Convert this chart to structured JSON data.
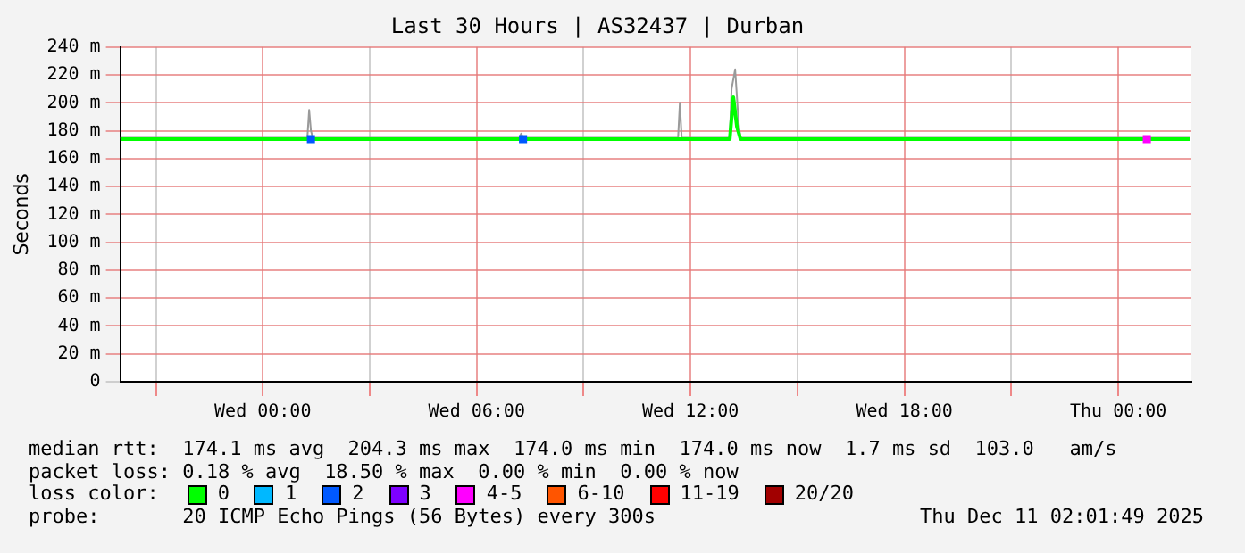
{
  "chart_data": {
    "type": "line",
    "title": "Last 30 Hours | AS32437 | Durban",
    "ylabel": "Seconds",
    "legend_title": "loss color:",
    "legend": "bottom",
    "grid": true,
    "line_style": "solid",
    "xlim": [
      "2025-12-09T20:00",
      "2025-12-11T02:03"
    ],
    "xticks": [
      {
        "value": "2025-12-09T21:00",
        "label": null
      },
      {
        "value": "2025-12-10T00:00",
        "label": "Wed 00:00"
      },
      {
        "value": "2025-12-10T03:00",
        "label": null
      },
      {
        "value": "2025-12-10T06:00",
        "label": "Wed 06:00"
      },
      {
        "value": "2025-12-10T09:00",
        "label": null
      },
      {
        "value": "2025-12-10T12:00",
        "label": "Wed 12:00"
      },
      {
        "value": "2025-12-10T15:00",
        "label": null
      },
      {
        "value": "2025-12-10T18:00",
        "label": "Wed 18:00"
      },
      {
        "value": "2025-12-10T21:00",
        "label": null
      },
      {
        "value": "2025-12-11T00:00",
        "label": "Thu 00:00"
      }
    ],
    "ylim": [
      0,
      240
    ],
    "yticks": [
      0,
      {
        "value": 20,
        "label": "20 m"
      },
      {
        "value": 40,
        "label": "40 m"
      },
      {
        "value": 60,
        "label": "60 m"
      },
      {
        "value": 80,
        "label": "80 m"
      },
      {
        "value": 100,
        "label": "100 m"
      },
      {
        "value": 120,
        "label": "120 m"
      },
      {
        "value": 140,
        "label": "140 m"
      },
      {
        "value": 160,
        "label": "160 m"
      },
      {
        "value": 180,
        "label": "180 m"
      },
      {
        "value": 200,
        "label": "200 m"
      },
      {
        "value": 220,
        "label": "220 m"
      },
      {
        "value": 240,
        "label": "240 m"
      }
    ],
    "series": [
      {
        "color": "#9a9a9a",
        "x": [
          "2025-12-09T20:00",
          "2025-12-10T01:15",
          "2025-12-10T01:18",
          "2025-12-10T01:21",
          "2025-12-10T01:24",
          "2025-12-10T07:12",
          "2025-12-10T07:15",
          "2025-12-10T07:18",
          "2025-12-10T11:39",
          "2025-12-10T11:42",
          "2025-12-10T11:45",
          "2025-12-10T13:06",
          "2025-12-10T13:09",
          "2025-12-10T13:15",
          "2025-12-10T13:21",
          "2025-12-10T13:24",
          "2025-12-11T02:00"
        ],
        "values": [
          175,
          175,
          195,
          180,
          175,
          175,
          178,
          175,
          175,
          200,
          175,
          175,
          210,
          224,
          185,
          175,
          175
        ]
      },
      {
        "name": "0",
        "color": "#00ff00",
        "x": [
          "2025-12-09T20:00",
          "2025-12-10T13:06",
          "2025-12-10T13:12",
          "2025-12-10T13:18",
          "2025-12-10T13:24",
          "2025-12-11T02:00"
        ],
        "values": [
          174,
          174,
          204,
          183,
          174,
          174
        ]
      },
      {
        "name": "1",
        "color": "#00b8ff",
        "type": "scatter"
      },
      {
        "name": "2",
        "color": "#0059ff",
        "type": "scatter",
        "marker": "square",
        "x": [
          "2025-12-10T01:21",
          "2025-12-10T07:18"
        ],
        "values": [
          174,
          174
        ]
      },
      {
        "name": "3",
        "color": "#7e00ff",
        "type": "scatter"
      },
      {
        "name": "4-5",
        "color": "#ff00ff",
        "type": "scatter",
        "marker": "square",
        "x": [
          "2025-12-11T00:48"
        ],
        "values": [
          174
        ]
      },
      {
        "name": "6-10",
        "color": "#ff5500",
        "type": "scatter"
      },
      {
        "name": "11-19",
        "color": "#ff0000",
        "type": "scatter"
      },
      {
        "name": "20/20",
        "color": "#a10000",
        "type": "scatter"
      }
    ],
    "annotations": [
      "median rtt:  174.1 ms avg  204.3 ms max  174.0 ms min  174.0 ms now  1.7 ms sd  103.0   am/s",
      "packet loss: 0.18 % avg  18.50 % max  0.00 % min  0.00 % now",
      "probe:       20 ICMP Echo Pings (56 Bytes) every 300s",
      "Thu Dec 11 02:01:49 2025"
    ]
  }
}
